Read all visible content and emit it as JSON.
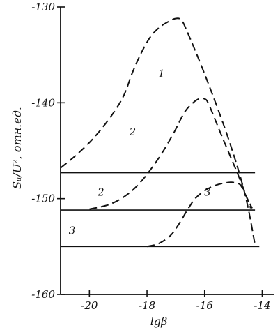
{
  "chart_data": {
    "type": "line",
    "title": "",
    "xlabel": "lgβ",
    "ylabel": "Sᵤ/U², отн.ед.",
    "xlim": [
      -21,
      -13.6
    ],
    "ylim": [
      -160,
      -130
    ],
    "x_ticks": [
      "-20",
      "-18",
      "-16",
      "-14"
    ],
    "x_tick_values": [
      -20,
      -18,
      -16,
      -14
    ],
    "y_ticks": [
      "-130",
      "-140",
      "-150",
      "-160"
    ],
    "y_tick_values": [
      -130,
      -140,
      -150,
      -160
    ],
    "grid": false,
    "legend": "none",
    "series": [
      {
        "label": "1",
        "style": "dashed",
        "x": [
          -21.0,
          -20.4,
          -19.8,
          -19.2,
          -18.8,
          -18.5,
          -18.2,
          -17.9,
          -17.6,
          -17.3,
          -17.0,
          -16.8,
          -16.6,
          -16.0,
          -15.2,
          -14.6,
          -14.25
        ],
        "y": [
          -146.8,
          -145.3,
          -143.5,
          -141.2,
          -139.2,
          -136.8,
          -134.8,
          -133.2,
          -132.2,
          -131.6,
          -131.2,
          -131.4,
          -132.6,
          -137.0,
          -143.5,
          -149.5,
          -154.8
        ]
      },
      {
        "label": "2",
        "style": "dashed",
        "x": [
          -20.0,
          -19.3,
          -18.7,
          -18.2,
          -17.6,
          -17.1,
          -16.7,
          -16.4,
          -16.2,
          -16.0,
          -15.85,
          -15.4,
          -14.8,
          -14.4
        ],
        "y": [
          -151.1,
          -150.6,
          -149.6,
          -148.2,
          -145.8,
          -143.3,
          -141.0,
          -140.0,
          -139.6,
          -139.6,
          -140.2,
          -143.5,
          -147.8,
          -151.0
        ]
      },
      {
        "label": "3",
        "style": "dashed",
        "x": [
          -18.0,
          -17.6,
          -17.2,
          -16.9,
          -16.6,
          -16.3,
          -15.9,
          -15.5,
          -15.1,
          -14.9,
          -14.75,
          -14.55,
          -14.35
        ],
        "y": [
          -155.0,
          -154.7,
          -153.9,
          -152.7,
          -151.2,
          -149.9,
          -149.0,
          -148.5,
          -148.3,
          -148.4,
          -148.6,
          -149.8,
          -151.0
        ]
      },
      {
        "label": "",
        "style": "solid",
        "x": [
          -21.0,
          -14.25
        ],
        "y": [
          -147.3,
          -147.3
        ]
      },
      {
        "label": "",
        "style": "solid",
        "x": [
          -21.0,
          -14.25
        ],
        "y": [
          -151.2,
          -151.2
        ]
      },
      {
        "label": "",
        "style": "solid",
        "x": [
          -21.0,
          -14.1
        ],
        "y": [
          -155.0,
          -155.0
        ]
      }
    ],
    "annotations": [
      {
        "text": "1",
        "x": -17.5,
        "y": -137.3
      },
      {
        "text": "2",
        "x": -18.5,
        "y": -143.4
      },
      {
        "text": "2",
        "x": -19.6,
        "y": -149.7
      },
      {
        "text": "3",
        "x": -15.9,
        "y": -149.7
      },
      {
        "text": "3",
        "x": -20.6,
        "y": -153.7
      }
    ]
  }
}
